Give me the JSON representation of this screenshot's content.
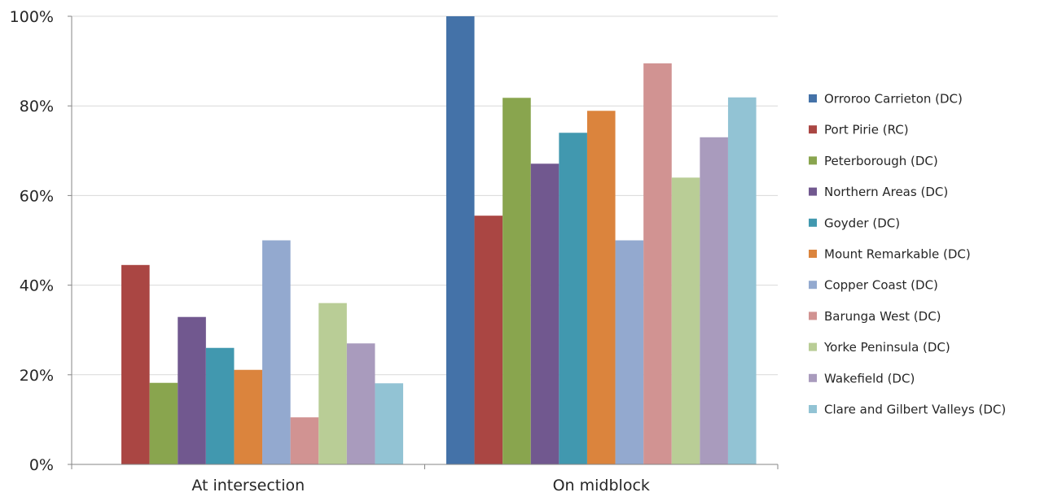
{
  "chart_data": {
    "type": "bar",
    "categories": [
      "At intersection",
      "On midblock"
    ],
    "series": [
      {
        "name": "Orroroo Carrieton (DC)",
        "color": "#4472A8",
        "values": [
          0,
          100
        ]
      },
      {
        "name": "Port Pirie (RC)",
        "color": "#AA4643",
        "values": [
          44.5,
          55.5
        ]
      },
      {
        "name": "Peterborough (DC)",
        "color": "#89A54E",
        "values": [
          18.2,
          81.8
        ]
      },
      {
        "name": "Northern Areas (DC)",
        "color": "#71588F",
        "values": [
          32.9,
          67.1
        ]
      },
      {
        "name": "Goyder (DC)",
        "color": "#4198AF",
        "values": [
          26,
          74
        ]
      },
      {
        "name": "Mount Remarkable (DC)",
        "color": "#DB843D",
        "values": [
          21.1,
          78.9
        ]
      },
      {
        "name": "Copper Coast (DC)",
        "color": "#93A9CF",
        "values": [
          50,
          50
        ]
      },
      {
        "name": "Barunga West (DC)",
        "color": "#D19392",
        "values": [
          10.5,
          89.5
        ]
      },
      {
        "name": "Yorke Peninsula (DC)",
        "color": "#B9CD96",
        "values": [
          36,
          64
        ]
      },
      {
        "name": "Wakefield (DC)",
        "color": "#A99BBD",
        "values": [
          27,
          73
        ]
      },
      {
        "name": "Clare and Gilbert Valleys (DC)",
        "color": "#92C3D4",
        "values": [
          18.1,
          81.9
        ]
      }
    ],
    "y_ticks": [
      "0%",
      "20%",
      "40%",
      "60%",
      "80%",
      "100%"
    ],
    "ylim": [
      0,
      100
    ],
    "grid": true,
    "legend_position": "right"
  }
}
